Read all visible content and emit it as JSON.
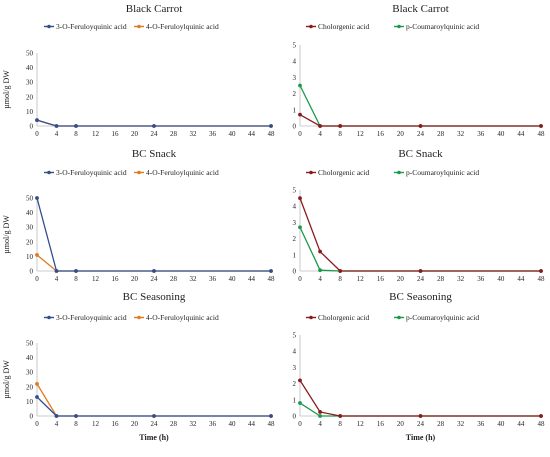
{
  "colors": {
    "feruloyl3": "#2f4f8f",
    "feruloyl4": "#e07b22",
    "cholorgenic": "#8b1a1a",
    "coumaroyl": "#1a9a4a"
  },
  "xlabel": "Time (h)",
  "ylabel": "µmol/g DW",
  "chart_data": [
    {
      "type": "line",
      "title": "Black Carrot",
      "x": [
        0,
        4,
        8,
        24,
        48
      ],
      "xticks": [
        0,
        4,
        8,
        12,
        16,
        20,
        24,
        28,
        32,
        36,
        40,
        44,
        48
      ],
      "ylim": [
        0,
        50
      ],
      "yticks": [
        0,
        10,
        20,
        30,
        40,
        50
      ],
      "ylabel": "µmol/g DW",
      "xlabel": "",
      "series": [
        {
          "name": "3-O-Feruloyquinic acid",
          "color_key": "feruloyl3",
          "values": [
            4,
            0,
            0,
            0,
            0
          ]
        },
        {
          "name": "4-O-Feruloylquinic acid",
          "color_key": "feruloyl4",
          "values": [
            4,
            0,
            0,
            0,
            0
          ]
        }
      ]
    },
    {
      "type": "line",
      "title": "Black Carrot",
      "x": [
        0,
        4,
        8,
        24,
        48
      ],
      "xticks": [
        0,
        4,
        8,
        12,
        16,
        20,
        24,
        28,
        32,
        36,
        40,
        44,
        48
      ],
      "ylim": [
        0,
        5
      ],
      "yticks": [
        0,
        1,
        2,
        3,
        4,
        5
      ],
      "ylabel": "",
      "xlabel": "",
      "series": [
        {
          "name": "Cholorgenic acid",
          "color_key": "cholorgenic",
          "values": [
            0.7,
            0,
            0,
            0,
            0
          ]
        },
        {
          "name": "p-Coumaroylquinic acid",
          "color_key": "coumaroyl",
          "values": [
            2.5,
            0,
            0,
            0,
            0
          ]
        }
      ]
    },
    {
      "type": "line",
      "title": "BC Snack",
      "x": [
        0,
        4,
        8,
        24,
        48
      ],
      "xticks": [
        0,
        4,
        8,
        12,
        16,
        20,
        24,
        28,
        32,
        36,
        40,
        44,
        48
      ],
      "ylim": [
        0,
        50
      ],
      "yticks": [
        0,
        10,
        20,
        30,
        40,
        50
      ],
      "ylabel": "µmol/g DW",
      "xlabel": "",
      "series": [
        {
          "name": "3-O-Feruloyquinic acid",
          "color_key": "feruloyl3",
          "values": [
            50,
            0,
            0,
            0,
            0
          ]
        },
        {
          "name": "4-O-Feruloylquinic acid",
          "color_key": "feruloyl4",
          "values": [
            11,
            0,
            0,
            0,
            0
          ]
        }
      ]
    },
    {
      "type": "line",
      "title": "BC Snack",
      "x": [
        0,
        4,
        8,
        24,
        48
      ],
      "xticks": [
        0,
        4,
        8,
        12,
        16,
        20,
        24,
        28,
        32,
        36,
        40,
        44,
        48
      ],
      "ylim": [
        0,
        5
      ],
      "yticks": [
        0,
        1,
        2,
        3,
        4,
        5
      ],
      "ylabel": "",
      "xlabel": "",
      "series": [
        {
          "name": "Cholorgenic acid",
          "color_key": "cholorgenic",
          "values": [
            4.5,
            1.2,
            0,
            0,
            0
          ]
        },
        {
          "name": "p-Coumaroylquinic acid",
          "color_key": "coumaroyl",
          "values": [
            2.7,
            0.05,
            0,
            0,
            0
          ]
        }
      ]
    },
    {
      "type": "line",
      "title": "BC Seasoning",
      "x": [
        0,
        4,
        8,
        24,
        48
      ],
      "xticks": [
        0,
        4,
        8,
        12,
        16,
        20,
        24,
        28,
        32,
        36,
        40,
        44,
        48
      ],
      "ylim": [
        0,
        50
      ],
      "yticks": [
        0,
        10,
        20,
        30,
        40,
        50
      ],
      "ylabel": "µmol/g DW",
      "xlabel": "Time (h)",
      "series": [
        {
          "name": "3-O-Feruloyquinic acid",
          "color_key": "feruloyl3",
          "values": [
            13,
            0,
            0,
            0,
            0
          ]
        },
        {
          "name": "4-O-Feruloylquinic acid",
          "color_key": "feruloyl4",
          "values": [
            22,
            0,
            0,
            0,
            0
          ]
        }
      ]
    },
    {
      "type": "line",
      "title": "BC Seasoning",
      "x": [
        0,
        4,
        8,
        24,
        48
      ],
      "xticks": [
        0,
        4,
        8,
        12,
        16,
        20,
        24,
        28,
        32,
        36,
        40,
        44,
        48
      ],
      "ylim": [
        0,
        5
      ],
      "yticks": [
        0,
        1,
        2,
        3,
        4,
        5
      ],
      "ylabel": "",
      "xlabel": "Time (h)",
      "series": [
        {
          "name": "Cholorgenic acid",
          "color_key": "cholorgenic",
          "values": [
            2.2,
            0.25,
            0,
            0,
            0
          ]
        },
        {
          "name": "p-Coumaroylquinic acid",
          "color_key": "coumaroyl",
          "values": [
            0.8,
            0,
            0,
            0,
            0
          ]
        }
      ]
    }
  ]
}
